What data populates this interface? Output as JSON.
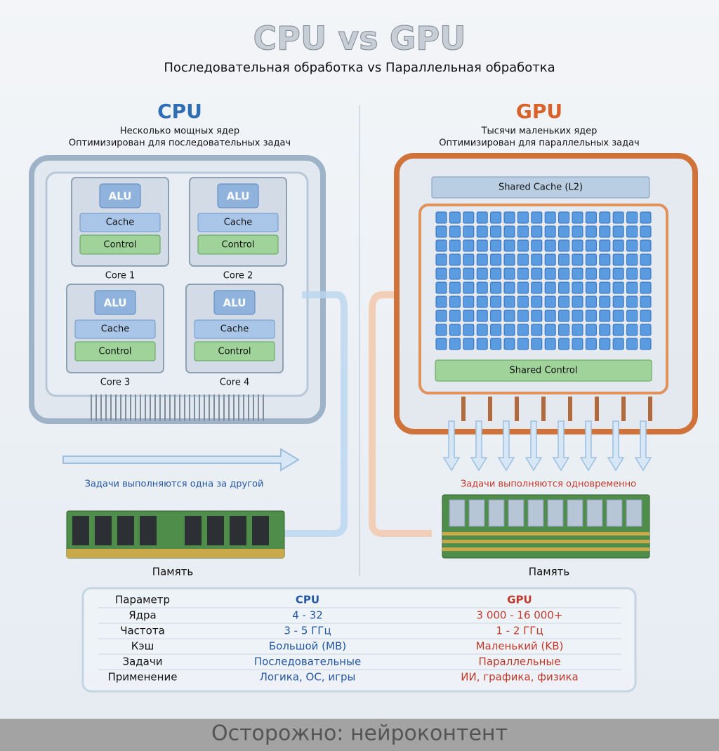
{
  "header": {
    "title": "CPU vs GPU",
    "subtitle": "Последовательная обработка vs Параллельная обработка"
  },
  "cpu": {
    "title": "CPU",
    "lines": [
      "Несколько мощных ядер",
      "Оптимизирован для последовательных задач"
    ],
    "cores": [
      {
        "alu": "ALU",
        "cache": "Cache",
        "control": "Control",
        "name": "Core 1"
      },
      {
        "alu": "ALU",
        "cache": "Cache",
        "control": "Control",
        "name": "Core 2"
      },
      {
        "alu": "ALU",
        "cache": "Cache",
        "control": "Control",
        "name": "Core 3"
      },
      {
        "alu": "ALU",
        "cache": "Cache",
        "control": "Control",
        "name": "Core 4"
      }
    ],
    "caption": "Задачи выполняются одна за другой",
    "memory": "Память"
  },
  "gpu": {
    "title": "GPU",
    "lines": [
      "Тысячи маленьких ядер",
      "Оптимизирован для параллельных задач"
    ],
    "cache": "Shared Cache (L2)",
    "control": "Shared Control",
    "caption": "Задачи выполняются одновременно",
    "memory": "Память"
  },
  "table": {
    "header": [
      "Параметр",
      "CPU",
      "GPU"
    ],
    "rows": [
      [
        "Ядра",
        "4 - 32",
        "3 000 - 16 000+"
      ],
      [
        "Частота",
        "3 - 5 ГГц",
        "1 - 2 ГГц"
      ],
      [
        "Кэш",
        "Большой (MB)",
        "Маленький (KB)"
      ],
      [
        "Задачи",
        "Последовательные",
        "Параллельные"
      ],
      [
        "Применение",
        "Логика, ОС, игры",
        "ИИ, графика, физика"
      ]
    ]
  },
  "footer": "Осторожно: нейроконтент"
}
